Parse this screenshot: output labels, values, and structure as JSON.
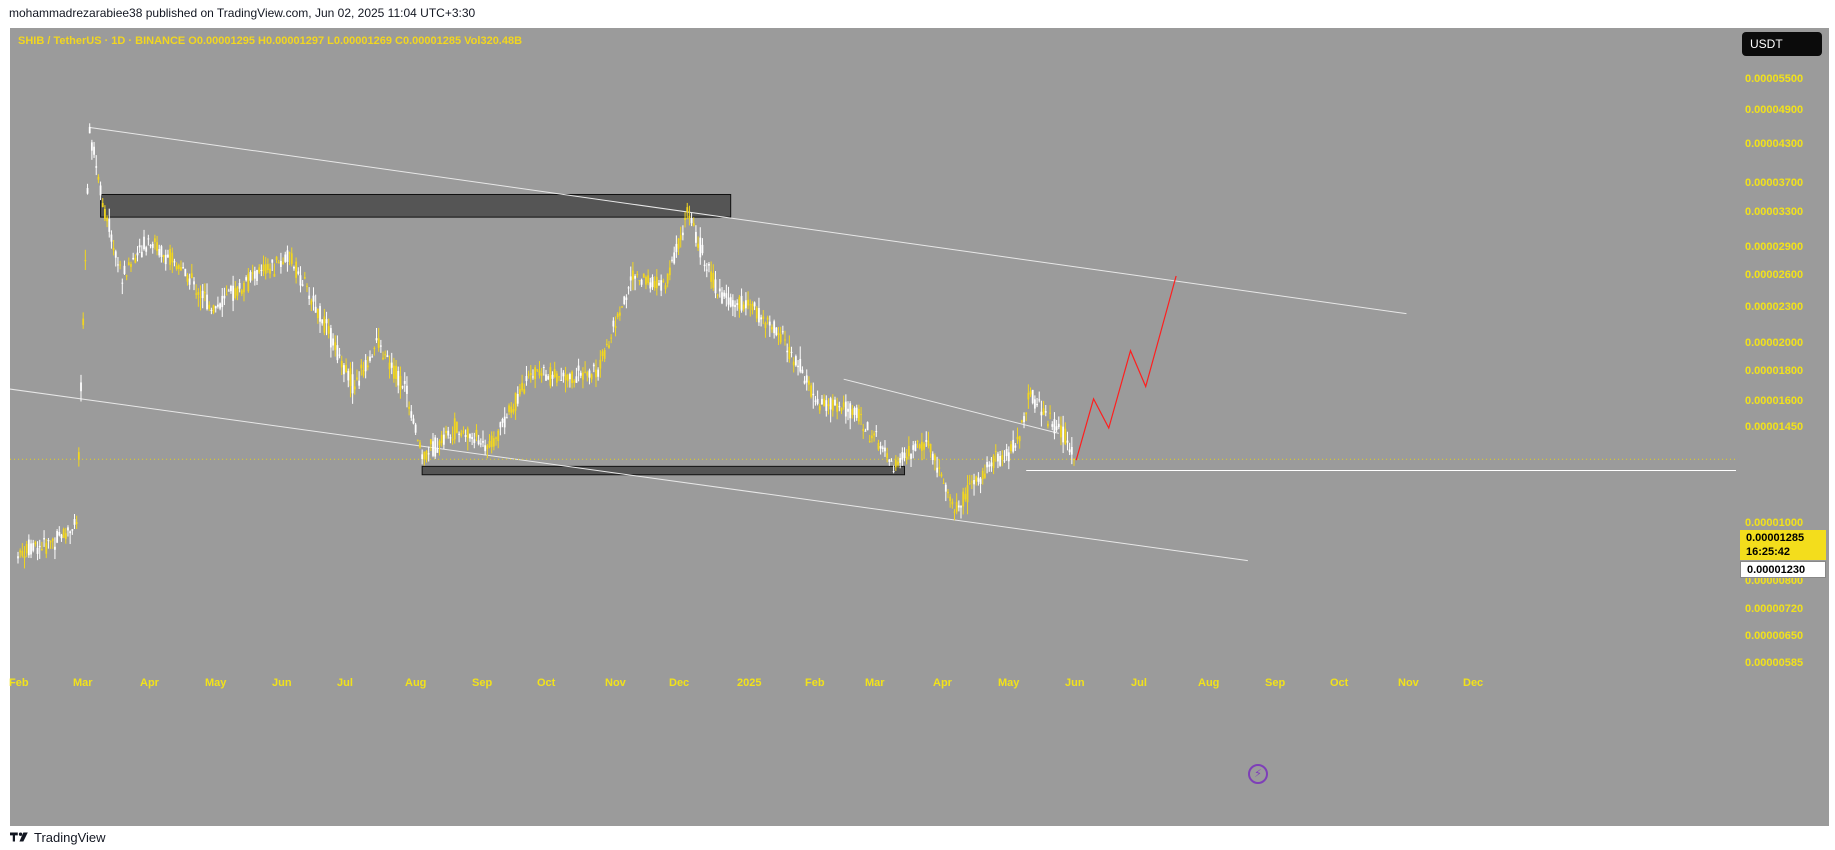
{
  "header": {
    "text": "mohammadrezarabiee38 published on TradingView.com, Jun 02, 2025 11:04 UTC+3:30"
  },
  "legend": {
    "text": "SHIB / TetherUS · 1D · BINANCE  O0.00001295  H0.00001297  L0.00001269  C0.00001285  Vol320.48B"
  },
  "currency_button": {
    "label": "USDT"
  },
  "current_price": {
    "price": "0.00001285",
    "countdown": "16:25:42"
  },
  "support_level": {
    "price": "0.00001230"
  },
  "footer": {
    "brand": "TradingView"
  },
  "icons": {
    "replay": "lightning-icon",
    "logo": "tradingview-logo-icon"
  },
  "colors": {
    "background": "#9b9b9b",
    "candle_up": "#ffffff",
    "candle_down": "#f2d61f",
    "axis_text": "#f2e21a",
    "projection": "#ff1e1e",
    "trendline": "#e8e8e8",
    "zone_fill": "#555555"
  },
  "chart_data": {
    "type": "candlestick",
    "symbol": "SHIB / TetherUS",
    "interval": "1D",
    "exchange": "BINANCE",
    "ohlc_last": {
      "open": 1.295e-05,
      "high": 1.297e-05,
      "low": 1.269e-05,
      "close": 1.285e-05,
      "volume": "320.48B"
    },
    "y_scale": "log",
    "ylim": [
      5.5e-06,
      6.1e-06
    ],
    "y_ticks": [
      "0.00005500",
      "0.00004900",
      "0.00004300",
      "0.00003700",
      "0.00003300",
      "0.00002900",
      "0.00002600",
      "0.00002300",
      "0.00002000",
      "0.00001800",
      "0.00001600",
      "0.00001450",
      "0.00001000",
      "0.00000900",
      "0.00000800",
      "0.00000720",
      "0.00000650",
      "0.00000585"
    ],
    "x_ticks": [
      "Feb",
      "Mar",
      "Apr",
      "May",
      "Jun",
      "Jul",
      "Aug",
      "Sep",
      "Oct",
      "Nov",
      "Dec",
      "2025",
      "Feb",
      "Mar",
      "Apr",
      "May",
      "Jun",
      "Jul",
      "Aug",
      "Sep",
      "Oct",
      "Nov",
      "Dec"
    ],
    "price_path": [
      [
        "2024-02-01",
        9e-06
      ],
      [
        "2024-02-15",
        9.3e-06
      ],
      [
        "2024-02-28",
        1e-05
      ],
      [
        "2024-03-05",
        4.6e-05
      ],
      [
        "2024-03-12",
        3.3e-05
      ],
      [
        "2024-03-20",
        2.6e-05
      ],
      [
        "2024-04-01",
        3e-05
      ],
      [
        "2024-04-15",
        2.7e-05
      ],
      [
        "2024-05-01",
        2.3e-05
      ],
      [
        "2024-05-20",
        2.6e-05
      ],
      [
        "2024-06-05",
        2.8e-05
      ],
      [
        "2024-06-20",
        2.2e-05
      ],
      [
        "2024-07-05",
        1.7e-05
      ],
      [
        "2024-07-15",
        2e-05
      ],
      [
        "2024-07-28",
        1.7e-05
      ],
      [
        "2024-08-05",
        1.3e-05
      ],
      [
        "2024-08-20",
        1.45e-05
      ],
      [
        "2024-09-05",
        1.35e-05
      ],
      [
        "2024-09-25",
        1.8e-05
      ],
      [
        "2024-10-10",
        1.75e-05
      ],
      [
        "2024-10-25",
        1.8e-05
      ],
      [
        "2024-11-10",
        2.6e-05
      ],
      [
        "2024-11-25",
        2.5e-05
      ],
      [
        "2024-12-05",
        3.3e-05
      ],
      [
        "2024-12-20",
        2.4e-05
      ],
      [
        "2025-01-05",
        2.3e-05
      ],
      [
        "2025-01-20",
        2e-05
      ],
      [
        "2025-02-03",
        1.6e-05
      ],
      [
        "2025-02-20",
        1.55e-05
      ],
      [
        "2025-03-10",
        1.25e-05
      ],
      [
        "2025-03-25",
        1.4e-05
      ],
      [
        "2025-04-07",
        1.05e-05
      ],
      [
        "2025-04-22",
        1.25e-05
      ],
      [
        "2025-05-05",
        1.35e-05
      ],
      [
        "2025-05-12",
        1.65e-05
      ],
      [
        "2025-05-25",
        1.45e-05
      ],
      [
        "2025-06-02",
        1.285e-05
      ]
    ],
    "annotations": [
      {
        "type": "zone",
        "from": "2024-03-10",
        "to": "2024-12-25",
        "low": 3.25e-05,
        "high": 3.55e-05
      },
      {
        "type": "zone",
        "from": "2024-08-05",
        "to": "2025-03-15",
        "low": 1.21e-05,
        "high": 1.25e-05
      },
      {
        "type": "trendline",
        "from": [
          "2024-03-05",
          4.6e-05
        ],
        "to": [
          "2025-11-01",
          2.25e-05
        ]
      },
      {
        "type": "trendline",
        "from": [
          "2024-01-20",
          1.7e-05
        ],
        "to": [
          "2025-08-20",
          8.7e-06
        ]
      },
      {
        "type": "trendline",
        "from": [
          "2025-02-15",
          1.75e-05
        ],
        "to": [
          "2025-05-25",
          1.42e-05
        ]
      },
      {
        "type": "horizontal_ray",
        "from": "2025-05-10",
        "price": 1.23e-05
      },
      {
        "type": "projection",
        "points": [
          [
            "2025-06-02",
            1.28e-05
          ],
          [
            "2025-06-10",
            1.62e-05
          ],
          [
            "2025-06-17",
            1.45e-05
          ],
          [
            "2025-06-27",
            1.95e-05
          ],
          [
            "2025-07-04",
            1.7e-05
          ],
          [
            "2025-07-18",
            2.6e-05
          ]
        ]
      }
    ]
  }
}
